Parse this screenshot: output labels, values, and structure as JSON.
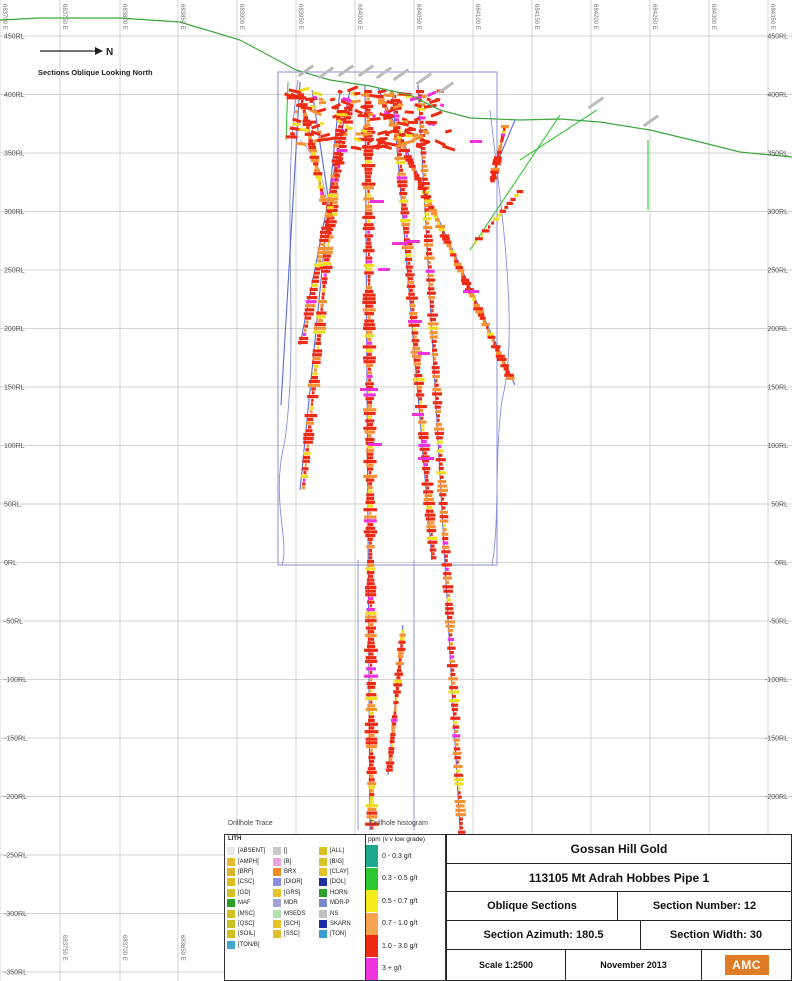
{
  "plot": {
    "direction_label": "N",
    "view_label": "Sections Oblique Looking North",
    "elevation_labels": [
      "450RL",
      "400RL",
      "350RL",
      "300RL",
      "250RL",
      "200RL",
      "150RL",
      "100RL",
      "50RL",
      "0RL",
      "-50RL",
      "-100RL",
      "-150RL",
      "-200RL",
      "-250RL",
      "-300RL",
      "-350RL"
    ],
    "easting_labels_top": [
      "683700 E",
      "683750 E",
      "683800 E",
      "683850 E",
      "683900 E",
      "683950 E",
      "684000 E",
      "684050 E",
      "684100 E",
      "684150 E",
      "684200 E",
      "684250 E",
      "684300 E",
      "684350 E"
    ],
    "easting_labels_bottom": [
      "683750 E",
      "683700 E",
      "683650 E"
    ],
    "colors": {
      "grid": "#c4c4c4",
      "topography": "#3da63d",
      "outline": "#8a8fd6",
      "trace_blue": "#5a6ad8",
      "trace_green": "#39c439",
      "grade_red": "#ee2a12",
      "grade_orange": "#f79232",
      "grade_yellow": "#f0de1c",
      "grade_magenta": "#ee33dd"
    }
  },
  "legend": {
    "trace_title": "Drillhole Trace",
    "lith_header": "LITH",
    "lith_items": [
      {
        "label": "[ABSENT]",
        "color": "#e8e8e8"
      },
      {
        "label": "[]",
        "color": "#c8c8c8"
      },
      {
        "label": "[ALL]",
        "color": "#d8c020"
      },
      {
        "label": "[AMPH]",
        "color": "#e8b830"
      },
      {
        "label": "[B]",
        "color": "#e9a3d8"
      },
      {
        "label": "[B/G]",
        "color": "#d6c428"
      },
      {
        "label": "[BRF]",
        "color": "#e2b42c"
      },
      {
        "label": "BRX",
        "color": "#f08a28"
      },
      {
        "label": "[CLAY]",
        "color": "#e4c428"
      },
      {
        "label": "[CSC]",
        "color": "#d8c020"
      },
      {
        "label": "[DIOR]",
        "color": "#8c8ce0"
      },
      {
        "label": "[DOL]",
        "color": "#2030a0"
      },
      {
        "label": "[GD]",
        "color": "#d4c224"
      },
      {
        "label": "[GRS]",
        "color": "#e6c42a"
      },
      {
        "label": "HORN",
        "color": "#2ca02c"
      },
      {
        "label": "MAF",
        "color": "#28a028"
      },
      {
        "label": "MDR",
        "color": "#a0a4d8"
      },
      {
        "label": "MDR-P",
        "color": "#7a8ac8"
      },
      {
        "label": "[MSC]",
        "color": "#d0c020"
      },
      {
        "label": "MSEDS",
        "color": "#b4e0b4"
      },
      {
        "label": "NS",
        "color": "#c0c0c0"
      },
      {
        "label": "[QSC]",
        "color": "#c8c020"
      },
      {
        "label": "[SCH]",
        "color": "#e4c428"
      },
      {
        "label": "SKARN",
        "color": "#1c2ca8"
      },
      {
        "label": "[SOIL]",
        "color": "#d0c020"
      },
      {
        "label": "[SSC]",
        "color": "#e0c02a"
      },
      {
        "label": "[TON]",
        "color": "#38a0d0"
      },
      {
        "label": "[TON/B]",
        "color": "#40a8c8"
      }
    ],
    "hist_title": "Drillhole histogram",
    "grade_header": "ppm (v v low grade)",
    "grade_items": [
      {
        "label": "0 - 0.3 g/t",
        "color": "#1ea890"
      },
      {
        "label": "0.3 - 0.5 g/t",
        "color": "#2ec82e"
      },
      {
        "label": "0.5 - 0.7 g/t",
        "color": "#f4ec1c"
      },
      {
        "label": "0.7 - 1.0 g/t",
        "color": "#f8a44c"
      },
      {
        "label": "1.0 - 3.0 g/t",
        "color": "#ee2a12"
      },
      {
        "label": "3 + g/t",
        "color": "#ee33dd"
      }
    ]
  },
  "title_block": {
    "project": "Gossan Hill Gold",
    "subtitle": "113105 Mt Adrah Hobbes Pipe 1",
    "view": "Oblique Sections",
    "section_number": "Section Number: 12",
    "section_azimuth": "Section Azimuth: 180.5",
    "section_width": "Section Width: 30",
    "scale": "Scale 1:2500",
    "date": "November 2013",
    "logo_text": "AMC"
  }
}
